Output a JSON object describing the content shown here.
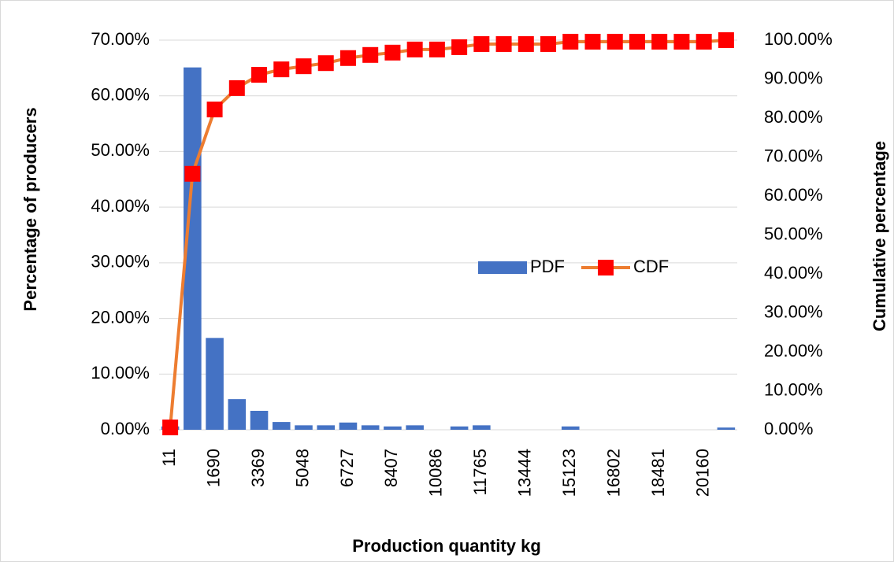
{
  "chart_data": {
    "type": "bar-line",
    "x_label": "Production quantity kg",
    "y_label": "Percentage of producers",
    "y2_label": "Cumulative percentage",
    "categories": [
      "11",
      null,
      "1690",
      null,
      "3369",
      null,
      "5048",
      null,
      "6727",
      null,
      "8407",
      null,
      "10086",
      null,
      "11765",
      null,
      "13444",
      null,
      "15123",
      null,
      "16802",
      null,
      "18481",
      null,
      "20160",
      null
    ],
    "series": [
      {
        "name": "PDF",
        "type": "bar",
        "color": "#4472c4",
        "values": [
          0.6,
          65.1,
          16.5,
          5.5,
          3.4,
          1.4,
          0.8,
          0.8,
          1.3,
          0.8,
          0.6,
          0.8,
          0,
          0.6,
          0.8,
          0,
          0,
          0,
          0.6,
          0,
          0,
          0,
          0,
          0,
          0,
          0.4
        ]
      },
      {
        "name": "CDF",
        "type": "line",
        "axis": "y2",
        "color": "#ed7d31",
        "marker_color": "#ff0000",
        "values": [
          0.6,
          65.7,
          82.2,
          87.7,
          91.1,
          92.5,
          93.3,
          94.1,
          95.4,
          96.2,
          96.8,
          97.6,
          97.6,
          98.2,
          99.0,
          99.0,
          99.0,
          99.0,
          99.6,
          99.6,
          99.6,
          99.6,
          99.6,
          99.6,
          99.6,
          100
        ]
      }
    ],
    "ylim": [
      0,
      70
    ],
    "yticks": [
      {
        "value": 0,
        "label": "0.00%"
      },
      {
        "value": 10,
        "label": "10.00%"
      },
      {
        "value": 20,
        "label": "20.00%"
      },
      {
        "value": 30,
        "label": "30.00%"
      },
      {
        "value": 40,
        "label": "40.00%"
      },
      {
        "value": 50,
        "label": "50.00%"
      },
      {
        "value": 60,
        "label": "60.00%"
      },
      {
        "value": 70,
        "label": "70.00%"
      }
    ],
    "y2lim": [
      0,
      100
    ],
    "y2ticks": [
      {
        "value": 0,
        "label": "0.00%"
      },
      {
        "value": 10,
        "label": "10.00%"
      },
      {
        "value": 20,
        "label": "20.00%"
      },
      {
        "value": 30,
        "label": "30.00%"
      },
      {
        "value": 40,
        "label": "40.00%"
      },
      {
        "value": 50,
        "label": "50.00%"
      },
      {
        "value": 60,
        "label": "60.00%"
      },
      {
        "value": 70,
        "label": "70.00%"
      },
      {
        "value": 80,
        "label": "80.00%"
      },
      {
        "value": 90,
        "label": "90.00%"
      },
      {
        "value": 100,
        "label": "100.00%"
      }
    ],
    "grid": true
  }
}
